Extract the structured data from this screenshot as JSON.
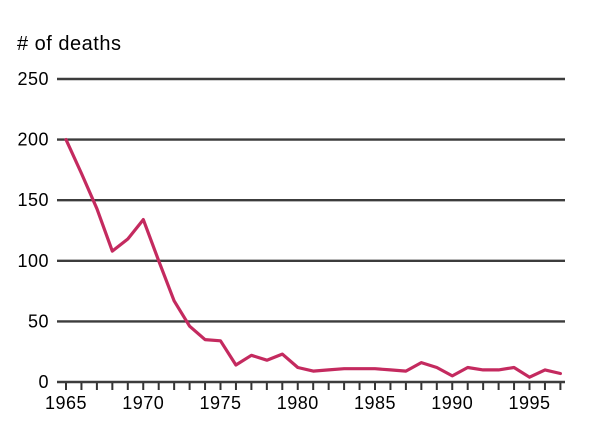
{
  "chart_data": {
    "type": "line",
    "title": "# of deaths",
    "x": [
      1965,
      1966,
      1967,
      1968,
      1969,
      1970,
      1971,
      1972,
      1973,
      1974,
      1975,
      1976,
      1977,
      1978,
      1979,
      1980,
      1981,
      1982,
      1983,
      1984,
      1985,
      1986,
      1987,
      1988,
      1989,
      1990,
      1991,
      1992,
      1993,
      1994,
      1995,
      1996,
      1997
    ],
    "series": [
      {
        "name": "deaths",
        "values": [
          200,
          172,
          143,
          108,
          118,
          134,
          100,
          67,
          46,
          35,
          34,
          14,
          22,
          18,
          23,
          12,
          9,
          10,
          11,
          11,
          11,
          10,
          9,
          16,
          12,
          5,
          12,
          10,
          10,
          12,
          4,
          10,
          7
        ]
      }
    ],
    "xlabel": "",
    "ylabel": "# of deaths",
    "ylim": [
      0,
      250
    ],
    "yticks": [
      0,
      50,
      100,
      150,
      200,
      250
    ],
    "xtick_labels": [
      "1965",
      "1970",
      "1975",
      "1980",
      "1985",
      "1990",
      "1995"
    ],
    "xtick_label_years": [
      1965,
      1970,
      1975,
      1980,
      1985,
      1990,
      1995
    ],
    "x_minor_tick_every_years": 1,
    "grid": "horizontal",
    "legend": "none",
    "colors": {
      "line": "#C42A5F",
      "grid": "#3C3C3C",
      "axis": "#333333",
      "text": "#000000",
      "background": "#FFFFFF"
    }
  }
}
